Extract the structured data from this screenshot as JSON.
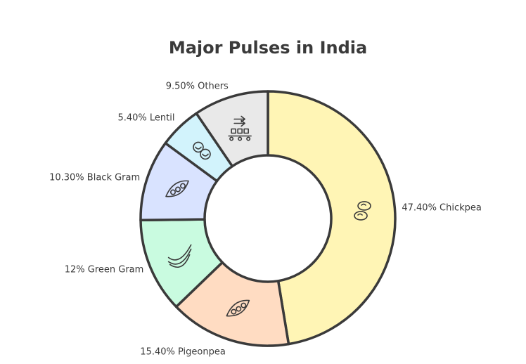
{
  "chart_data": {
    "type": "pie",
    "title": "Major Pulses in India",
    "categories": [
      "Chickpea",
      "Pigeonpea",
      "Green Gram",
      "Black Gram",
      "Lentil",
      "Others"
    ],
    "values": [
      47.4,
      15.4,
      12,
      10.3,
      5.4,
      9.5
    ],
    "labels": [
      "47.40% Chickpea",
      "15.40% Pigeonpea",
      "12% Green Gram",
      "10.30% Black Gram",
      "5.40% Lentil",
      "9.50% Others"
    ],
    "colors": [
      "#fff5b5",
      "#ffdcc2",
      "#c9fbe0",
      "#d9e3ff",
      "#d2f3fc",
      "#e9e9e9"
    ],
    "icons": [
      "chickpea-icon",
      "pea-pod-icon",
      "beans-icon",
      "pea-pod-icon",
      "lentil-icon",
      "conveyor-icon"
    ],
    "donut": true
  }
}
